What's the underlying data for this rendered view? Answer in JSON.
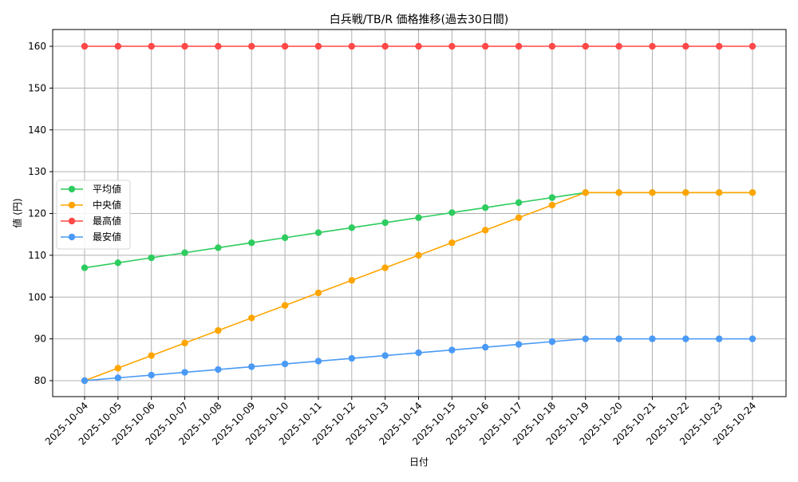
{
  "chart_data": {
    "type": "line",
    "title": "白兵戦/TB/R 価格推移(過去30日間)",
    "xlabel": "日付",
    "ylabel": "値 (円)",
    "ylim": [
      76,
      164
    ],
    "yticks": [
      80,
      90,
      100,
      110,
      120,
      130,
      140,
      150,
      160
    ],
    "grid": true,
    "legend_position": "center left",
    "categories": [
      "2025-10-04",
      "2025-10-05",
      "2025-10-06",
      "2025-10-07",
      "2025-10-08",
      "2025-10-09",
      "2025-10-10",
      "2025-10-11",
      "2025-10-12",
      "2025-10-13",
      "2025-10-14",
      "2025-10-15",
      "2025-10-16",
      "2025-10-17",
      "2025-10-18",
      "2025-10-19",
      "2025-10-20",
      "2025-10-21",
      "2025-10-22",
      "2025-10-23",
      "2025-10-24"
    ],
    "series": [
      {
        "name": "平均値",
        "color": "#2ecc5f",
        "values": [
          107,
          108.2,
          109.4,
          110.6,
          111.8,
          113,
          114.2,
          115.4,
          116.6,
          117.8,
          119,
          120.2,
          121.4,
          122.6,
          123.8,
          125,
          125,
          125,
          125,
          125,
          125
        ]
      },
      {
        "name": "中央値",
        "color": "#ffa500",
        "values": [
          80,
          83,
          86,
          89,
          92,
          95,
          98,
          101,
          104,
          107,
          110,
          113,
          116,
          119,
          122,
          125,
          125,
          125,
          125,
          125,
          125
        ]
      },
      {
        "name": "最高値",
        "color": "#ff4848",
        "values": [
          160,
          160,
          160,
          160,
          160,
          160,
          160,
          160,
          160,
          160,
          160,
          160,
          160,
          160,
          160,
          160,
          160,
          160,
          160,
          160,
          160
        ]
      },
      {
        "name": "最安値",
        "color": "#4a9af5",
        "values": [
          80,
          80.67,
          81.33,
          82,
          82.67,
          83.33,
          84,
          84.67,
          85.33,
          86,
          86.67,
          87.33,
          88,
          88.67,
          89.33,
          90,
          90,
          90,
          90,
          90,
          90
        ]
      }
    ]
  }
}
